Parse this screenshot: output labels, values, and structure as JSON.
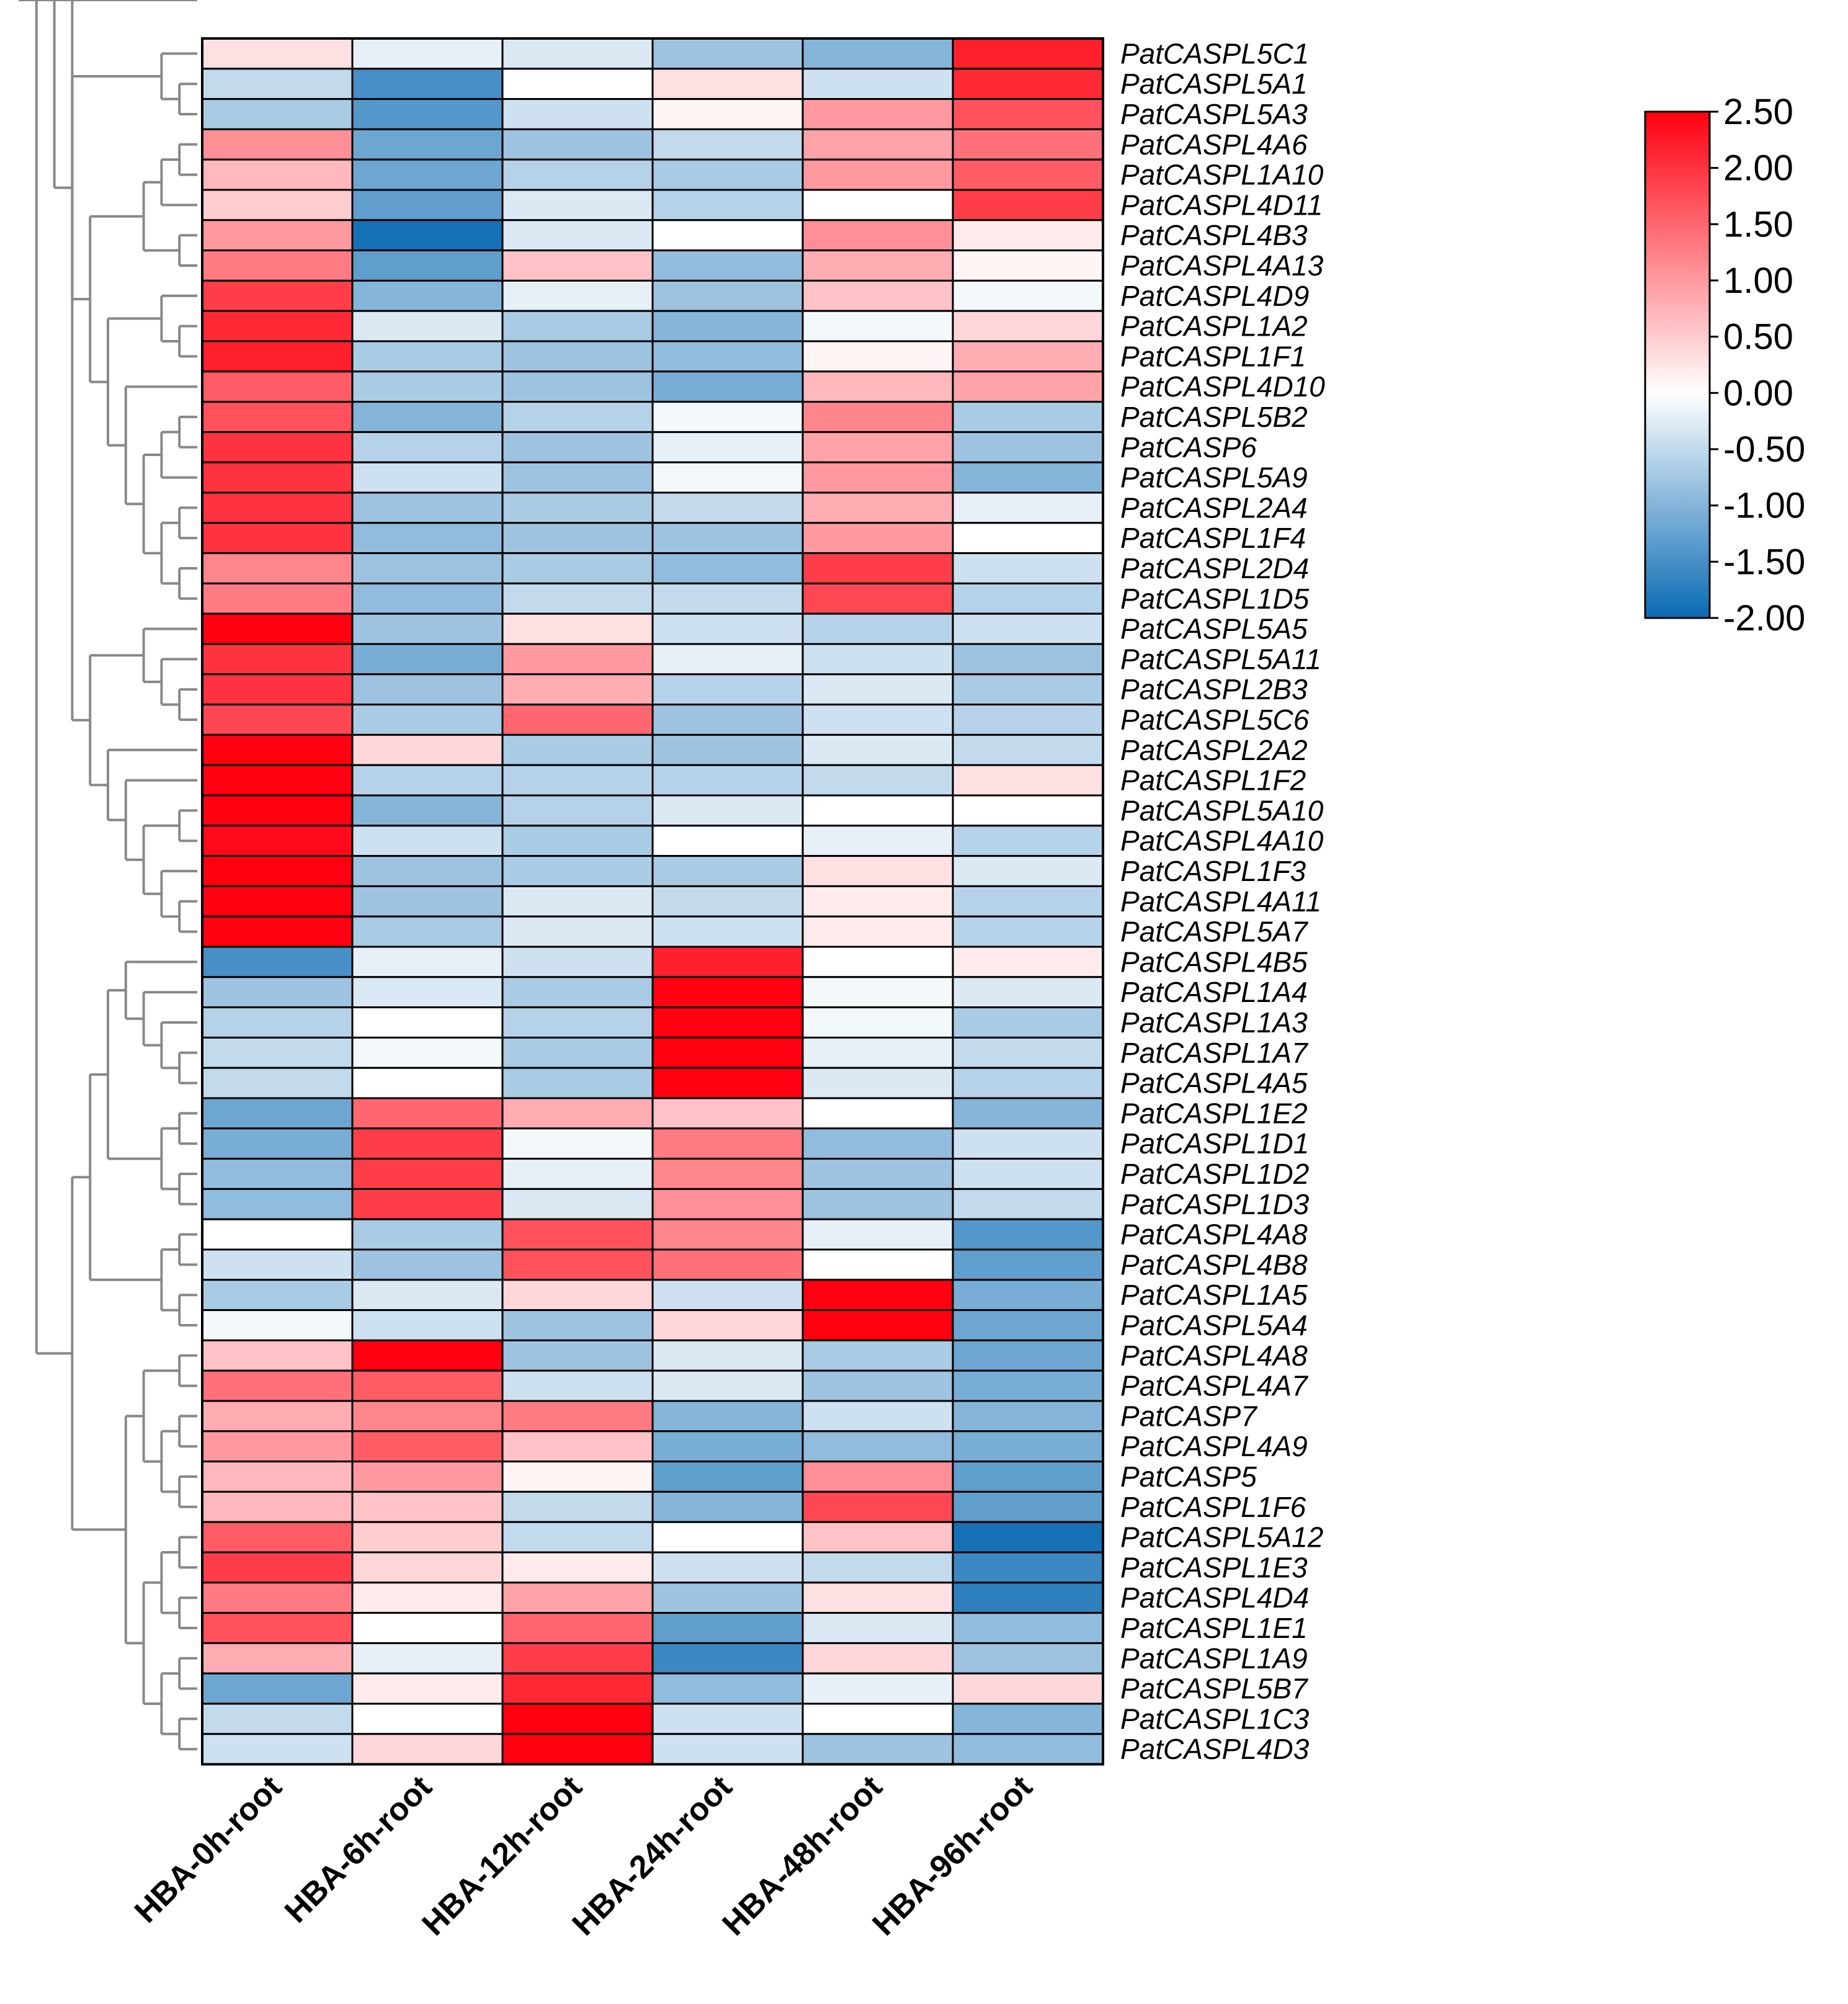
{
  "chart_data": {
    "type": "heatmap",
    "title": "",
    "xlabel": "",
    "ylabel": "",
    "columns": [
      "HBA-0h-root",
      "HBA-6h-root",
      "HBA-12h-root",
      "HBA-24h-root",
      "HBA-48h-root",
      "HBA-96h-root"
    ],
    "rows": [
      "PatCASPL5C1",
      "PatCASPL5A1",
      "PatCASPL5A3",
      "PatCASPL4A6",
      "PatCASPL1A10",
      "PatCASPL4D11",
      "PatCASPL4B3",
      "PatCASPL4A13",
      "PatCASPL4D9",
      "PatCASPL1A2",
      "PatCASPL1F1",
      "PatCASPL4D10",
      "PatCASPL5B2",
      "PatCASP6",
      "PatCASPL5A9",
      "PatCASPL2A4",
      "PatCASPL1F4",
      "PatCASPL2D4",
      "PatCASPL1D5",
      "PatCASPL5A5",
      "PatCASPL5A11",
      "PatCASPL2B3",
      "PatCASPL5C6",
      "PatCASPL2A2",
      "PatCASPL1F2",
      "PatCASPL5A10",
      "PatCASPL4A10",
      "PatCASPL1F3",
      "PatCASPL4A11",
      "PatCASPL5A7",
      "PatCASPL4B5",
      "PatCASPL1A4",
      "PatCASPL1A3",
      "PatCASPL1A7",
      "PatCASPL4A5",
      "PatCASPL1E2",
      "PatCASPL1D1",
      "PatCASPL1D2",
      "PatCASPL1D3",
      "PatCASPL4A8",
      "PatCASPL4B8",
      "PatCASPL1A5",
      "PatCASPL5A4",
      "PatCASPL4A8",
      "PatCASPL4A7",
      "PatCASP7",
      "PatCASPL4A9",
      "PatCASP5",
      "PatCASPL1F6",
      "PatCASPL5A12",
      "PatCASPL1E3",
      "PatCASPL4D4",
      "PatCASPL1E1",
      "PatCASPL1A9",
      "PatCASPL5B7",
      "PatCASPL1C3",
      "PatCASPL4D3"
    ],
    "values": [
      [
        0.3,
        -0.2,
        -0.3,
        -0.8,
        -1.0,
        2.2
      ],
      [
        -0.5,
        -1.5,
        0.0,
        0.3,
        -0.4,
        2.1
      ],
      [
        -0.7,
        -1.4,
        -0.4,
        0.1,
        1.0,
        1.7
      ],
      [
        1.1,
        -1.2,
        -0.8,
        -0.5,
        0.9,
        1.4
      ],
      [
        0.7,
        -1.2,
        -0.6,
        -0.7,
        1.0,
        1.6
      ],
      [
        0.5,
        -1.3,
        -0.3,
        -0.6,
        0.0,
        1.9
      ],
      [
        1.0,
        -1.9,
        -0.3,
        0.0,
        1.1,
        0.2
      ],
      [
        1.3,
        -1.3,
        0.6,
        -0.9,
        0.8,
        0.1
      ],
      [
        1.9,
        -1.0,
        -0.2,
        -0.8,
        0.6,
        -0.1
      ],
      [
        2.1,
        -0.3,
        -0.7,
        -1.0,
        -0.1,
        0.4
      ],
      [
        2.2,
        -0.7,
        -0.8,
        -0.9,
        0.1,
        0.8
      ],
      [
        1.6,
        -0.7,
        -0.8,
        -1.1,
        0.7,
        0.9
      ],
      [
        1.7,
        -1.0,
        -0.6,
        -0.1,
        1.2,
        -0.7
      ],
      [
        2.0,
        -0.6,
        -0.8,
        -0.2,
        0.9,
        -0.8
      ],
      [
        2.0,
        -0.4,
        -0.8,
        -0.1,
        1.0,
        -1.0
      ],
      [
        2.0,
        -0.8,
        -0.7,
        -0.5,
        0.8,
        -0.2
      ],
      [
        2.0,
        -0.9,
        -0.8,
        -0.8,
        1.0,
        0.0
      ],
      [
        1.2,
        -0.8,
        -0.7,
        -0.9,
        1.9,
        -0.4
      ],
      [
        1.3,
        -0.9,
        -0.5,
        -0.5,
        1.8,
        -0.6
      ],
      [
        2.5,
        -0.8,
        0.3,
        -0.4,
        -0.6,
        -0.4
      ],
      [
        2.0,
        -1.1,
        1.0,
        -0.2,
        -0.4,
        -0.8
      ],
      [
        2.0,
        -0.8,
        0.8,
        -0.6,
        -0.3,
        -0.7
      ],
      [
        1.8,
        -0.7,
        1.5,
        -0.8,
        -0.4,
        -0.6
      ],
      [
        2.5,
        0.4,
        -0.7,
        -0.8,
        -0.3,
        -0.5
      ],
      [
        2.5,
        -0.6,
        -0.6,
        -0.6,
        -0.5,
        0.3
      ],
      [
        2.5,
        -1.0,
        -0.6,
        -0.3,
        0.0,
        0.0
      ],
      [
        2.4,
        -0.4,
        -0.7,
        0.0,
        -0.2,
        -0.6
      ],
      [
        2.5,
        -0.8,
        -0.7,
        -0.7,
        0.3,
        -0.3
      ],
      [
        2.5,
        -0.8,
        -0.3,
        -0.5,
        0.2,
        -0.6
      ],
      [
        2.5,
        -0.7,
        -0.3,
        -0.4,
        0.2,
        -0.6
      ],
      [
        -1.5,
        -0.2,
        -0.4,
        2.2,
        0.0,
        0.2
      ],
      [
        -0.8,
        -0.3,
        -0.7,
        2.5,
        -0.1,
        -0.3
      ],
      [
        -0.6,
        0.0,
        -0.6,
        2.5,
        -0.1,
        -0.7
      ],
      [
        -0.5,
        -0.1,
        -0.7,
        2.5,
        -0.2,
        -0.5
      ],
      [
        -0.5,
        0.0,
        -0.7,
        2.5,
        -0.3,
        -0.6
      ],
      [
        -1.2,
        1.5,
        0.8,
        0.6,
        0.0,
        -1.0
      ],
      [
        -1.1,
        1.9,
        -0.1,
        1.3,
        -0.9,
        -0.4
      ],
      [
        -0.9,
        1.9,
        -0.2,
        1.2,
        -0.8,
        -0.4
      ],
      [
        -0.9,
        1.9,
        -0.3,
        1.1,
        -0.8,
        -0.5
      ],
      [
        0.0,
        -0.7,
        1.7,
        1.2,
        -0.2,
        -1.4
      ],
      [
        -0.4,
        -0.8,
        1.7,
        1.4,
        0.0,
        -1.3
      ],
      [
        -0.7,
        -0.3,
        0.4,
        -0.4,
        2.5,
        -1.1
      ],
      [
        -0.1,
        -0.4,
        -0.8,
        0.4,
        2.5,
        -1.2
      ],
      [
        0.6,
        2.5,
        -0.8,
        -0.3,
        -0.7,
        -1.2
      ],
      [
        1.4,
        1.6,
        -0.4,
        -0.3,
        -0.8,
        -1.1
      ],
      [
        0.8,
        1.2,
        1.3,
        -1.0,
        -0.4,
        -1.0
      ],
      [
        1.0,
        1.6,
        0.6,
        -1.1,
        -0.9,
        -1.1
      ],
      [
        0.7,
        1.0,
        0.1,
        -1.3,
        1.1,
        -1.3
      ],
      [
        0.7,
        0.6,
        -0.5,
        -1.0,
        1.8,
        -1.3
      ],
      [
        1.6,
        0.5,
        -0.5,
        0.0,
        0.6,
        -1.9
      ],
      [
        1.9,
        0.4,
        0.2,
        -0.4,
        -0.5,
        -1.6
      ],
      [
        1.3,
        0.2,
        0.9,
        -0.8,
        0.3,
        -1.7
      ],
      [
        1.7,
        0.0,
        1.5,
        -1.3,
        -0.3,
        -0.9
      ],
      [
        0.8,
        -0.2,
        1.9,
        -1.6,
        0.4,
        -0.8
      ],
      [
        -1.2,
        0.2,
        2.1,
        -0.9,
        -0.2,
        0.4
      ],
      [
        -0.5,
        0.0,
        2.5,
        -0.4,
        0.0,
        -1.0
      ],
      [
        -0.4,
        0.4,
        2.5,
        -0.4,
        -0.8,
        -0.9
      ]
    ],
    "colorbar": {
      "min": -2.0,
      "max": 2.5,
      "ticks": [
        "2.50",
        "2.00",
        "1.50",
        "1.00",
        "0.50",
        "0.00",
        "-0.50",
        "-1.00",
        "-1.50",
        "-2.00"
      ],
      "colors": {
        "low": "#0a6ab3",
        "mid": "#ffffff",
        "high": "#ff0010"
      }
    },
    "dendrogram": {
      "color": "#888888",
      "tree": [
        [
          [
            [
              [
                0,
                [
                  1,
                  2
                ]
              ],
              [
                [
                  [
                    [
                      3,
                      4
                    ],
                    5
                  ],
                  [
                    6,
                    7
                  ]
                ],
                [
                  [
                    8,
                    [
                      9,
                      10
                    ]
                  ],
                  [
                    11,
                    [
                      [
                        [
                          12,
                          13
                        ],
                        14
                      ],
                      [
                        [
                          15,
                          16
                        ],
                        [
                          17,
                          18
                        ]
                      ]
                    ]
                  ]
                ]
              ]
            ],
            [
              [
                [
                  19,
                  [
                    20,
                    [
                      21,
                      22
                    ]
                  ]
                ],
                [
                  23,
                  [
                    24,
                    [
                      [
                        25,
                        26
                      ],
                      [
                        27,
                        [
                          28,
                          29
                        ]
                      ]
                    ]
                  ]
                ]
              ]
            ]
          ],
          [
            [
              [
                [
                  30,
                  [
                    31,
                    [
                      32,
                      [
                        33,
                        34
                      ]
                    ]
                  ]
                ],
                [
                  [
                    35,
                    36
                  ],
                  [
                    37,
                    38
                  ]
                ]
              ],
              [
                [
                  39,
                  40
                ],
                [
                  41,
                  42
                ]
              ]
            ],
            [
              [
                [
                  43,
                  44
                ],
                [
                  [
                    45,
                    46
                  ],
                  [
                    47,
                    48
                  ]
                ]
              ],
              [
                [
                  [
                    49,
                    50
                  ],
                  [
                    51,
                    52
                  ]
                ],
                [
                  [
                    53,
                    54
                  ],
                  [
                    55,
                    56
                  ]
                ]
              ]
            ]
          ]
        ]
      ]
    }
  }
}
